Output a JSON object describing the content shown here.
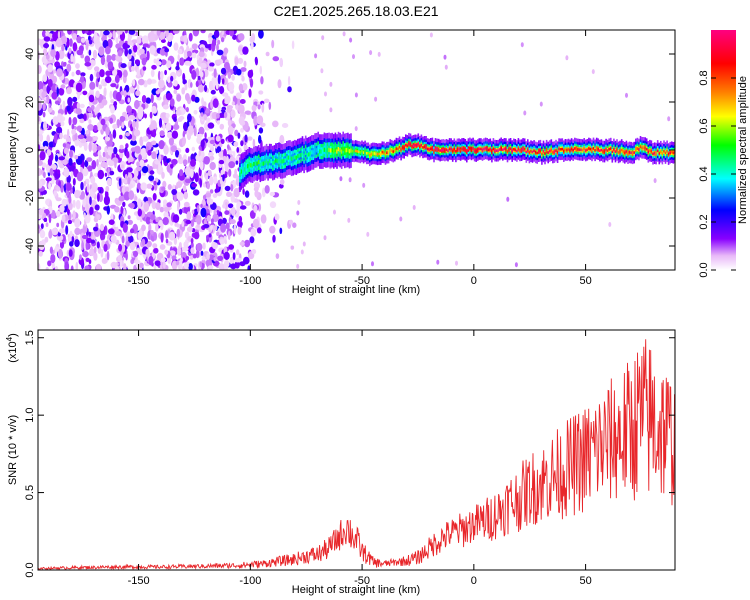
{
  "title": "C2E1.2025.265.18.03.E21",
  "chart_data": [
    {
      "type": "heatmap",
      "xlabel": "Height of straight line (km)",
      "ylabel": "Frequency (Hz)",
      "xlim": [
        -195,
        90
      ],
      "ylim": [
        -50,
        50
      ],
      "xticks": [
        -150,
        -100,
        -50,
        0,
        50
      ],
      "yticks": [
        -40,
        -20,
        0,
        20,
        40
      ],
      "colorbar": {
        "label": "Normalized spectral amplitude",
        "range": [
          0,
          1
        ],
        "ticks": [
          0.0,
          0.2,
          0.4,
          0.6,
          0.8
        ],
        "colors": [
          "#ffffff",
          "#e8b8f8",
          "#8800ff",
          "#0000ff",
          "#00ffff",
          "#00ff00",
          "#ffff00",
          "#ff8000",
          "#ff0000",
          "#ff0080"
        ]
      },
      "ridge": {
        "x": [
          -105,
          -100,
          -90,
          -80,
          -70,
          -65,
          -60,
          -55,
          -50,
          -45,
          -40,
          -35,
          -30,
          -25,
          -20,
          -10,
          0,
          10,
          20,
          30,
          40,
          50,
          60,
          70,
          75,
          80,
          90
        ],
        "y": [
          -10,
          -6,
          -5,
          -3,
          0,
          0,
          0,
          0,
          -1,
          -2,
          -1,
          0,
          2,
          2,
          0,
          0,
          0,
          0,
          0,
          -1,
          0,
          0,
          0,
          -1,
          1,
          -1,
          -1
        ],
        "peak_amplitude": [
          0.45,
          0.5,
          0.45,
          0.45,
          0.4,
          0.55,
          0.6,
          0.65,
          0.6,
          0.7,
          0.75,
          0.8,
          0.95,
          0.95,
          0.9,
          0.95,
          0.95,
          0.95,
          0.9,
          0.9,
          0.85,
          0.85,
          0.9,
          0.85,
          0.8,
          0.85,
          0.8
        ]
      },
      "noise_region_x": [
        -195,
        -100
      ]
    },
    {
      "type": "line",
      "xlabel": "Height of straight line (km)",
      "ylabel": "SNR (10 * v/v)",
      "y_multiplier": "(x10",
      "y_multiplier_exp": "4",
      "xlim": [
        -195,
        90
      ],
      "ylim": [
        0,
        1.55
      ],
      "xticks": [
        -150,
        -100,
        -50,
        0,
        50
      ],
      "yticks": [
        0.0,
        0.5,
        1.0,
        1.5
      ],
      "color": "#e8262a",
      "x": [
        -195,
        -180,
        -160,
        -140,
        -120,
        -105,
        -100,
        -95,
        -90,
        -85,
        -80,
        -75,
        -70,
        -65,
        -60,
        -57,
        -55,
        -52,
        -50,
        -47,
        -45,
        -40,
        -35,
        -30,
        -25,
        -20,
        -15,
        -10,
        -5,
        0,
        5,
        10,
        15,
        20,
        25,
        30,
        35,
        40,
        45,
        50,
        55,
        60,
        65,
        70,
        75,
        80,
        85,
        90
      ],
      "y": [
        0.01,
        0.015,
        0.02,
        0.02,
        0.025,
        0.03,
        0.035,
        0.04,
        0.05,
        0.06,
        0.07,
        0.09,
        0.1,
        0.14,
        0.22,
        0.28,
        0.24,
        0.18,
        0.12,
        0.08,
        0.05,
        0.04,
        0.05,
        0.06,
        0.08,
        0.14,
        0.2,
        0.24,
        0.26,
        0.3,
        0.32,
        0.36,
        0.42,
        0.46,
        0.52,
        0.56,
        0.6,
        0.64,
        0.68,
        0.72,
        0.78,
        0.82,
        0.86,
        0.9,
        1.0,
        0.96,
        0.9,
        0.82
      ],
      "noise_amplitude": [
        0.005,
        0.008,
        0.01,
        0.01,
        0.012,
        0.015,
        0.02,
        0.02,
        0.025,
        0.03,
        0.035,
        0.04,
        0.05,
        0.06,
        0.08,
        0.1,
        0.1,
        0.08,
        0.06,
        0.04,
        0.03,
        0.02,
        0.02,
        0.03,
        0.04,
        0.06,
        0.08,
        0.08,
        0.1,
        0.1,
        0.12,
        0.14,
        0.16,
        0.18,
        0.2,
        0.22,
        0.24,
        0.26,
        0.28,
        0.3,
        0.32,
        0.34,
        0.36,
        0.4,
        0.45,
        0.45,
        0.4,
        0.35
      ]
    }
  ]
}
